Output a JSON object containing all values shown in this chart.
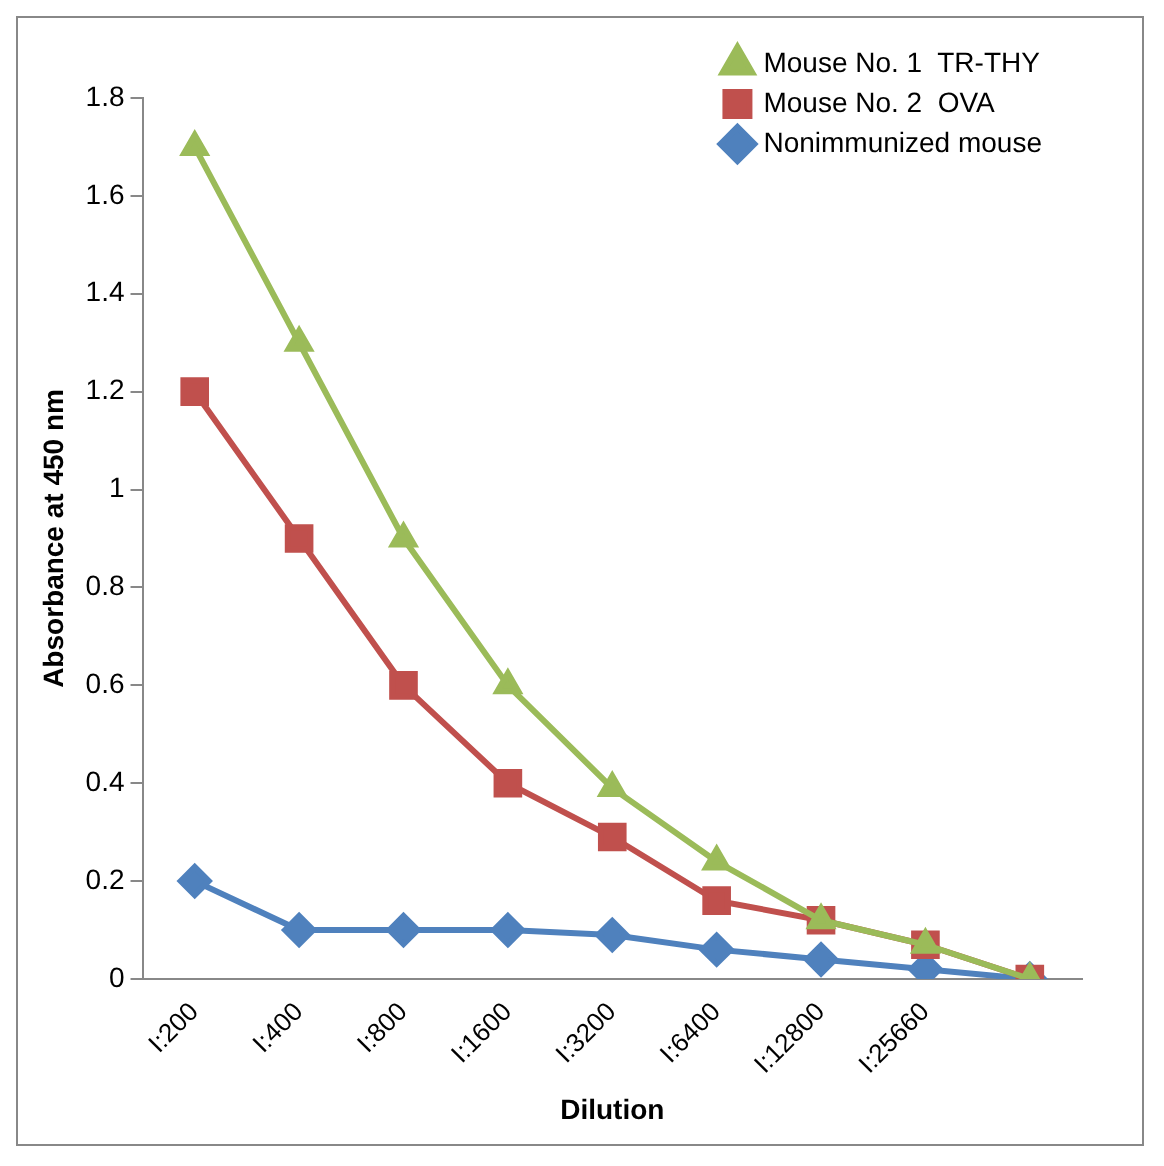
{
  "chart_data": {
    "type": "line",
    "xlabel": "Dilution",
    "ylabel": "Absorbance at 450 nm",
    "categories": [
      "I:200",
      "I:400",
      "I:800",
      "I:1600",
      "I:3200",
      "I:6400",
      "I:12800",
      "I:25660",
      null
    ],
    "series": [
      {
        "name": "Mouse No. 1  TR-THY",
        "color": "#9bbb59",
        "marker": "triangle",
        "values": [
          1.7,
          1.3,
          0.9,
          0.6,
          0.39,
          0.24,
          0.12,
          0.07,
          0
        ]
      },
      {
        "name": "Mouse No. 2  OVA",
        "color": "#c0504d",
        "marker": "square",
        "values": [
          1.2,
          0.9,
          0.6,
          0.4,
          0.29,
          0.16,
          0.12,
          0.07,
          0
        ]
      },
      {
        "name": "Nonimmunized mouse",
        "color": "#4f81bd",
        "marker": "diamond",
        "values": [
          0.2,
          0.1,
          0.1,
          0.1,
          0.09,
          0.06,
          0.04,
          0.02,
          0
        ]
      }
    ],
    "ylim": [
      0,
      1.8
    ],
    "yticks": [
      0,
      0.2,
      0.4,
      0.6,
      0.8,
      1,
      1.2,
      1.4,
      1.6,
      1.8
    ],
    "grid": false,
    "legend": "top right",
    "line_style": "solid"
  }
}
